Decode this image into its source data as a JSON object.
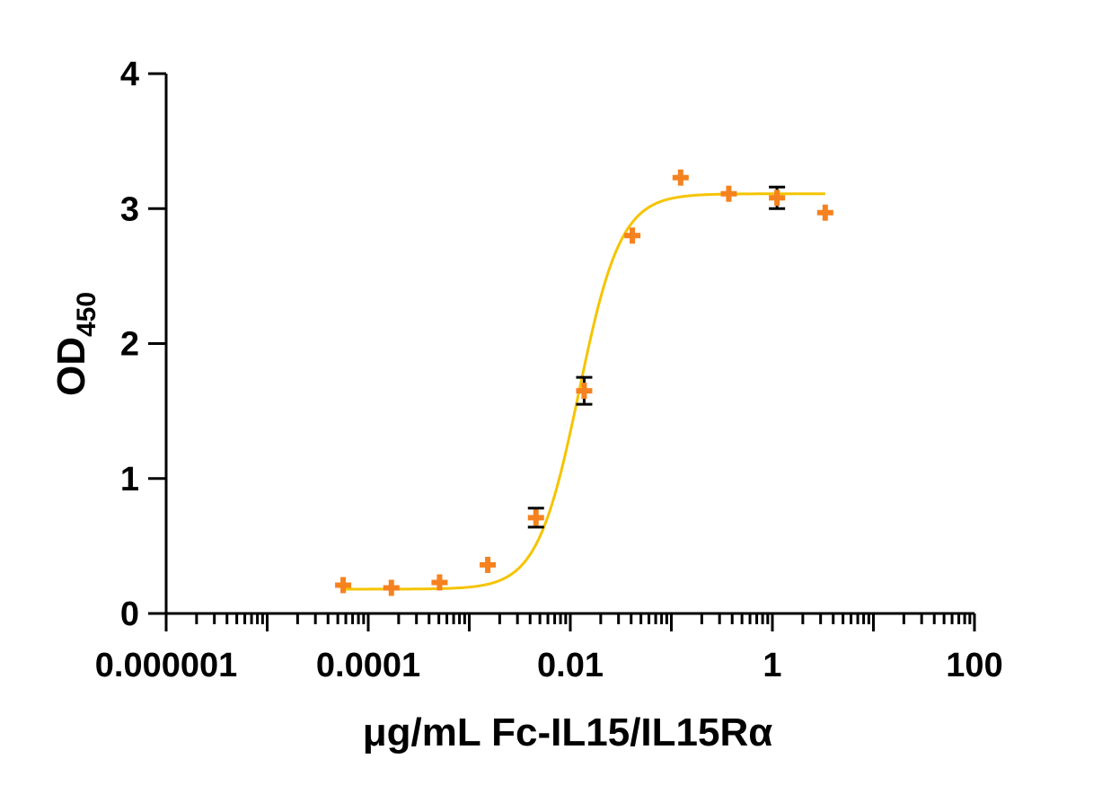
{
  "chart_data": {
    "type": "scatter",
    "title": "",
    "xlabel": "μg/mL Fc-IL15/IL15Rα",
    "ylabel": "OD",
    "ylabel_subscript": "450",
    "x_scale": "log",
    "xlim": [
      1e-06,
      100
    ],
    "ylim": [
      0,
      4
    ],
    "x_ticks": [
      1e-06,
      0.0001,
      0.01,
      1,
      100
    ],
    "x_tick_labels": [
      "0.000001",
      "0.0001",
      "0.01",
      "1",
      "100"
    ],
    "y_ticks": [
      0,
      1,
      2,
      3,
      4
    ],
    "y_tick_labels": [
      "0",
      "1",
      "2",
      "3",
      "4"
    ],
    "grid": false,
    "legend": "none",
    "series": [
      {
        "marker": "plus",
        "color": "#f5821f",
        "x": [
          5.645e-05,
          0.0001694,
          0.0005081,
          0.001524,
          0.004572,
          0.01372,
          0.04115,
          0.1235,
          0.3704,
          1.111,
          3.333
        ],
        "y": [
          0.21,
          0.19,
          0.23,
          0.36,
          0.71,
          1.65,
          2.8,
          3.23,
          3.11,
          3.08,
          2.97
        ],
        "y_err": [
          0.0,
          0.0,
          0.0,
          0.0,
          0.07,
          0.1,
          0.0,
          0.0,
          0.0,
          0.08,
          0.0
        ]
      }
    ],
    "fit_curve": {
      "model": "4PL",
      "color": "#f5c400",
      "bottom": 0.18,
      "top": 3.11,
      "ec50": 0.0122,
      "hill": 2.1,
      "x_range": [
        5.645e-05,
        3.333
      ]
    },
    "colors": {
      "points": "#f5821f",
      "fit_line": "#f5c400",
      "error_bars": "#000000",
      "axes": "#000000"
    }
  }
}
